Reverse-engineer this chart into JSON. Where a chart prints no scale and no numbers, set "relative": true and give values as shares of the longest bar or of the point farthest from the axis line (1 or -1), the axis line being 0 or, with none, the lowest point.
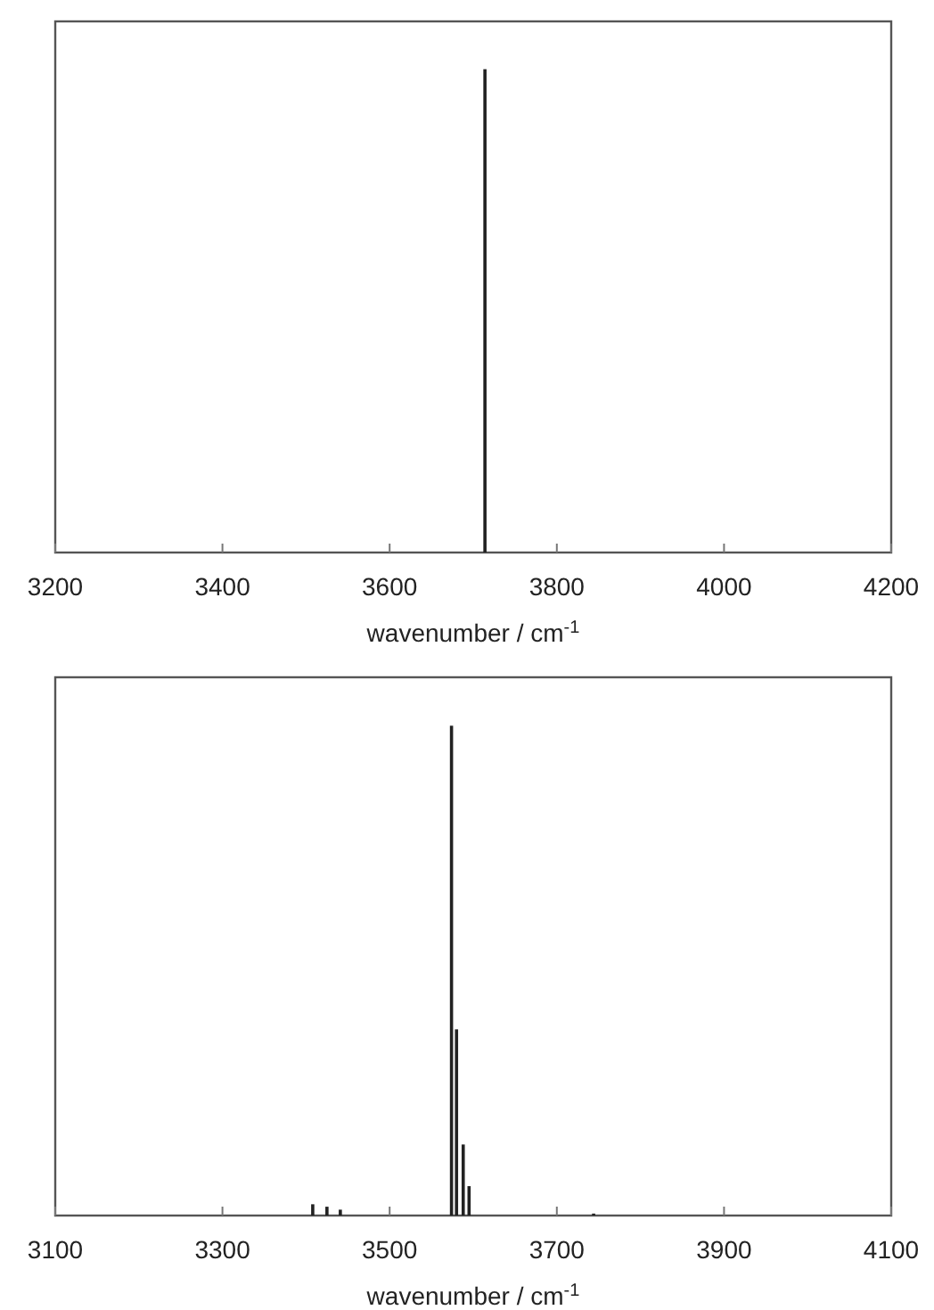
{
  "chart_data": [
    {
      "type": "bar",
      "x": [
        3714
      ],
      "values": [
        1
      ],
      "relative": true,
      "color": "#222222",
      "xlim": [
        3200,
        4200
      ],
      "xticks": [
        3200,
        3400,
        3600,
        3800,
        4000,
        4200
      ],
      "xlabel": "wavenumber / cm$^{-1}$"
    },
    {
      "type": "bar",
      "x": [
        3408,
        3425,
        3441,
        3574,
        3580,
        3588,
        3595,
        3744
      ],
      "values": [
        0.023,
        0.018,
        0.012,
        1,
        0.38,
        0.145,
        0.06,
        0.004
      ],
      "relative": true,
      "color": "#222222",
      "xlim": [
        3100,
        4100
      ],
      "xticks": [
        3100,
        3300,
        3500,
        3700,
        3900,
        4100
      ],
      "xlabel": "wavenumber / cm$^{-1}$"
    }
  ]
}
